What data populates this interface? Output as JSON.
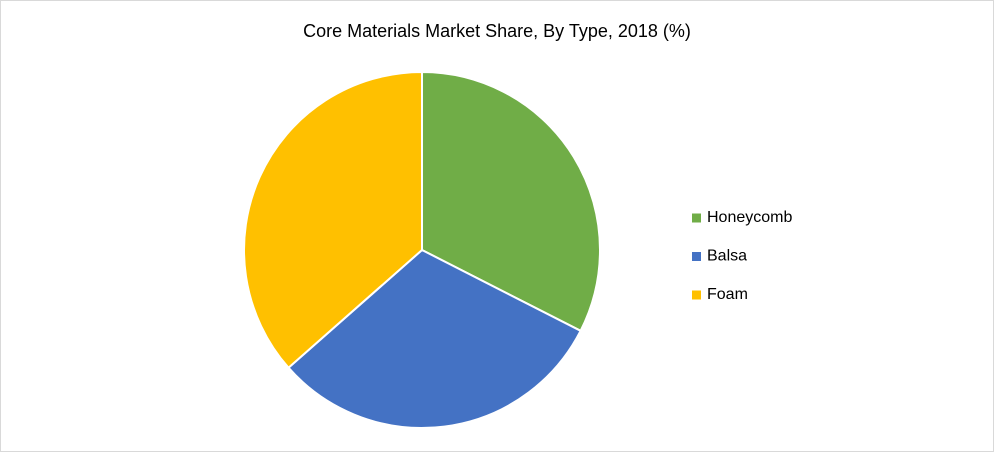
{
  "chart_data": {
    "type": "pie",
    "title": "Core Materials Market Share, By Type, 2018 (%)",
    "categories": [
      "Honeycomb",
      "Balsa",
      "Foam"
    ],
    "values": [
      32.5,
      31,
      36.5
    ],
    "colors": [
      "#70ad47",
      "#4472c4",
      "#ffc000"
    ],
    "legend": "right"
  }
}
